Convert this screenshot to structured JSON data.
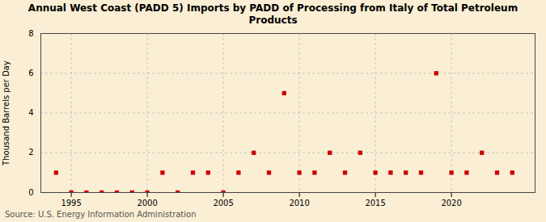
{
  "chart_data": {
    "type": "scatter",
    "title": "Annual West Coast (PADD 5) Imports by PADD of Processing from Italy of Total Petroleum\nProducts",
    "ylabel": "Thousand Barrels per Day",
    "annotations": [
      "Source: U.S. Energy Information Administration"
    ],
    "x": [
      1994,
      1995,
      1996,
      1997,
      1998,
      1999,
      2000,
      2001,
      2002,
      2003,
      2004,
      2005,
      2006,
      2007,
      2008,
      2009,
      2010,
      2011,
      2012,
      2013,
      2014,
      2015,
      2016,
      2017,
      2018,
      2019,
      2020,
      2021,
      2022,
      2023,
      2024
    ],
    "values": [
      1,
      0,
      0,
      0,
      0,
      0,
      0,
      1,
      0,
      1,
      1,
      0,
      1,
      2,
      1,
      5,
      1,
      1,
      2,
      1,
      2,
      1,
      1,
      1,
      1,
      6,
      1,
      1,
      2,
      1,
      1
    ],
    "color": "#cc0000",
    "marker": "square",
    "xlim": [
      1993.0,
      2025.5
    ],
    "ylim": [
      0,
      8
    ],
    "xticks": [
      1995,
      2000,
      2005,
      2010,
      2015,
      2020
    ],
    "yticks": [
      0,
      2,
      4,
      6,
      8
    ],
    "grid": true
  }
}
